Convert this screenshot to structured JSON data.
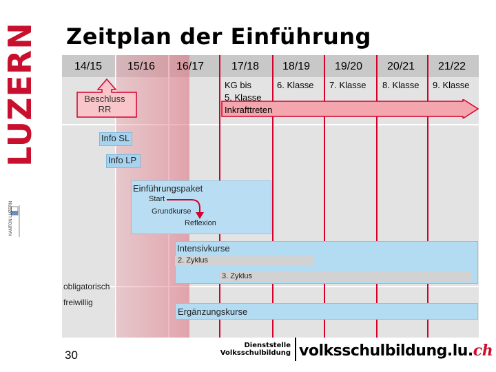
{
  "brand": {
    "name": "LUZERN",
    "kanton_logo_text": "KANTON LUZERN",
    "red": "#c8102e"
  },
  "slide": {
    "title": "Zeitplan der Einführung",
    "page_number": "30"
  },
  "timeline": {
    "years": [
      "14/15",
      "15/16",
      "16/17",
      "17/18",
      "18/19",
      "19/20",
      "20/21",
      "21/22"
    ],
    "grades": {
      "kg": "KG bis",
      "kg2": "5. Klasse",
      "g6": "6. Klasse",
      "g7": "7. Klasse",
      "g8": "8. Klasse",
      "g9": "9. Klasse"
    },
    "inkrafttreten": "Inkrafttreten"
  },
  "milestones": {
    "beschluss_line1": "Beschluss",
    "beschluss_line2": "RR",
    "info_sl": "Info SL",
    "info_lp": "Info LP",
    "einfuehrungspaket": "Einführungspaket",
    "start": "Start",
    "grundkurse": "Grundkurse",
    "reflexion": "Reflexion",
    "intensivkurse": "Intensivkurse",
    "zyklus2": "2. Zyklus",
    "zyklus3": "3. Zyklus",
    "ergaenzungskurse": "Ergänzungskurse"
  },
  "legend": {
    "obligatorisch": "obligatorisch",
    "freiwillig": "freiwillig"
  },
  "footer": {
    "dienststelle_line1": "Dienststelle",
    "dienststelle_line2": "Volksschulbildung",
    "url_main": "volksschulbildung.lu.",
    "url_tld": "ch"
  },
  "colors": {
    "accent_red": "#d4002a",
    "arrow_fill": "#f3a6ad",
    "box_blue": "#b3dbf2",
    "pink_band": "#e6919c"
  }
}
